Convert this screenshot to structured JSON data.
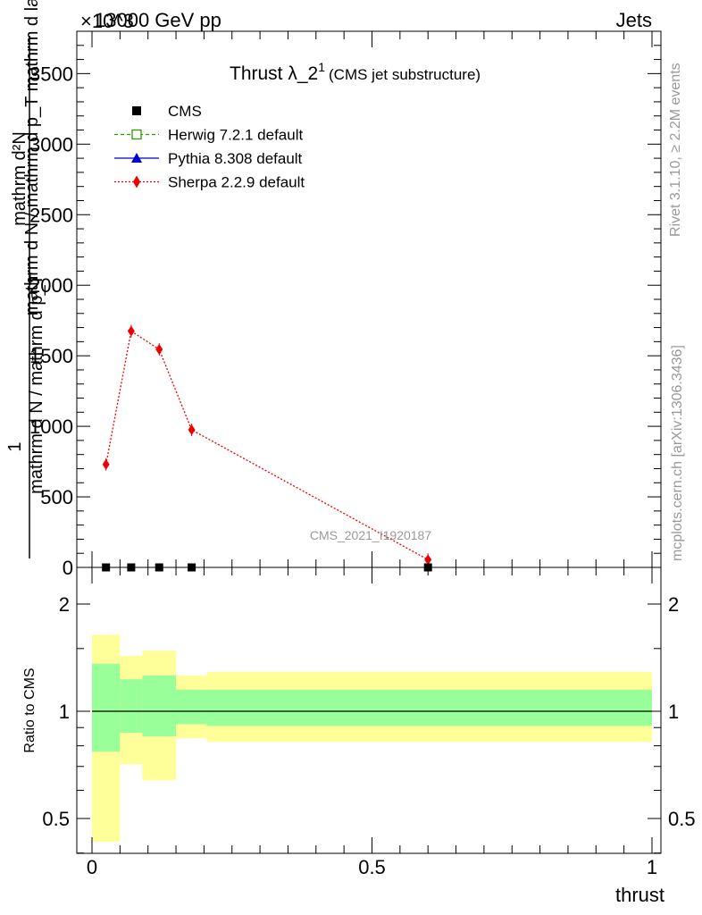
{
  "header": {
    "energy_label": "13000 GeV pp",
    "process_label": "Jets",
    "exponent_label": "×10^3",
    "rivet_label": "Rivet 3.1.10, ≥ 2.2M events",
    "mcplots_label": "mcplots.cern.ch [arXiv:1306.3436]",
    "analysis_label": "CMS_2021_I1920187"
  },
  "chart_data": [
    {
      "type": "line",
      "title": "Thrust λ_2",
      "title_superscript": "1",
      "subtitle": "(CMS jet substructure)",
      "ylabel_numerator": "1",
      "ylabel_denominator_left": "mathrm d N / mathrm d p_T",
      "ylabel_denominator_right": "mathrm d N / mathrm d p_T mathrm d lambda",
      "ylabel_top": "mathrm d²N",
      "ylim": [
        0,
        3800
      ],
      "xlim": [
        0,
        1
      ],
      "yticks": [
        0,
        500,
        1000,
        1500,
        2000,
        2500,
        3000,
        3500
      ],
      "ytick_labels": [
        "0",
        "500",
        "1000",
        "1500",
        "2000",
        "2500",
        "3000",
        "3500"
      ],
      "legend_position": "top-left",
      "legend": [
        {
          "name": "CMS",
          "marker": "square-filled",
          "color": "#000000",
          "style": "none"
        },
        {
          "name": "Herwig 7.2.1 default",
          "marker": "square-open",
          "color": "#339900",
          "style": "dashed"
        },
        {
          "name": "Pythia 8.308 default",
          "marker": "triangle",
          "color": "#0000cc",
          "style": "solid"
        },
        {
          "name": "Sherpa 2.2.9 default",
          "marker": "diamond",
          "color": "#ee0000",
          "style": "dotted"
        }
      ],
      "series": [
        {
          "name": "CMS",
          "x": [
            0.025,
            0.07,
            0.12,
            0.178,
            0.6
          ],
          "y": [
            0,
            0,
            0,
            0,
            0
          ]
        },
        {
          "name": "Sherpa 2.2.9 default",
          "x": [
            0.025,
            0.07,
            0.12,
            0.178,
            0.6
          ],
          "y": [
            730,
            1675,
            1545,
            975,
            55
          ]
        }
      ]
    },
    {
      "type": "area",
      "ylabel": "Ratio to CMS",
      "xlabel": "thrust",
      "xlim": [
        0,
        1
      ],
      "ylim": [
        0.35,
        2.25
      ],
      "yticks": [
        0.5,
        1,
        2
      ],
      "ytick_labels": [
        "0.5",
        "1",
        "2"
      ],
      "xticks": [
        0,
        0.5,
        1
      ],
      "xtick_labels": [
        "0",
        "0.5",
        "1"
      ],
      "bins": [
        {
          "x_low": 0.0,
          "x_high": 0.05,
          "outer": [
            0.43,
            1.64
          ],
          "inner": [
            0.77,
            1.36
          ]
        },
        {
          "x_low": 0.05,
          "x_high": 0.09,
          "outer": [
            0.71,
            1.43
          ],
          "inner": [
            0.87,
            1.23
          ]
        },
        {
          "x_low": 0.09,
          "x_high": 0.15,
          "outer": [
            0.64,
            1.48
          ],
          "inner": [
            0.85,
            1.26
          ]
        },
        {
          "x_low": 0.15,
          "x_high": 0.205,
          "outer": [
            0.84,
            1.26
          ],
          "inner": [
            0.92,
            1.15
          ]
        },
        {
          "x_low": 0.205,
          "x_high": 1.0,
          "outer": [
            0.82,
            1.29
          ],
          "inner": [
            0.91,
            1.15
          ]
        }
      ],
      "outer_color": "#ffff99",
      "inner_color": "#99ff99",
      "reference_line": 1
    }
  ]
}
